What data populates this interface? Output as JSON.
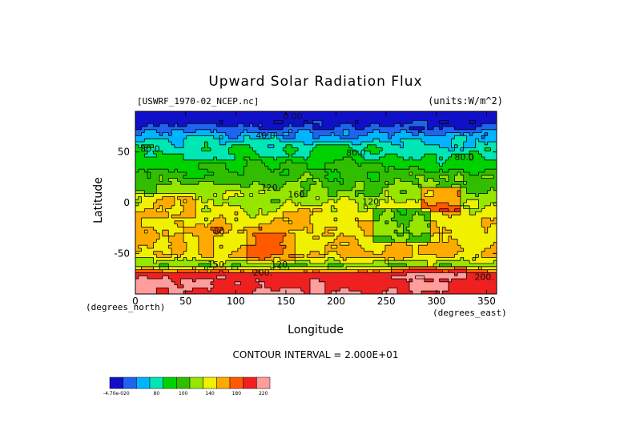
{
  "chart_data": {
    "type": "heatmap",
    "title": "Upward Solar Radiation Flux",
    "subtitle_left": "[USWRF_1970-02_NCEP.nc]",
    "units_label": "(units:W/m^2)",
    "xlabel": "Longitude",
    "ylabel": "Latitude",
    "x_unit_note": "(degrees_east)",
    "y_unit_note": "(degrees_north)",
    "xlim": [
      0,
      360
    ],
    "ylim": [
      -90,
      90
    ],
    "x_ticks": [
      0,
      50,
      100,
      150,
      200,
      250,
      300,
      350
    ],
    "y_ticks": [
      50,
      0,
      -50
    ],
    "contour_interval_text": "CONTOUR INTERVAL = 2.000E+01",
    "contour_labels": [
      {
        "text": "0.00",
        "lon": 147,
        "lat": 82
      },
      {
        "text": "40.0",
        "lon": 120,
        "lat": 63
      },
      {
        "text": "80.0",
        "lon": 5,
        "lat": 50
      },
      {
        "text": "80.0",
        "lon": 210,
        "lat": 46
      },
      {
        "text": "80.0",
        "lon": 318,
        "lat": 42
      },
      {
        "text": "120",
        "lon": 125,
        "lat": 12
      },
      {
        "text": "160",
        "lon": 152,
        "lat": 5
      },
      {
        "text": "120",
        "lon": 226,
        "lat": -2
      },
      {
        "text": "80",
        "lon": 78,
        "lat": -31
      },
      {
        "text": "150",
        "lon": 72,
        "lat": -64
      },
      {
        "text": "120",
        "lon": 135,
        "lat": -64
      },
      {
        "text": "200.",
        "lon": 117,
        "lat": -72
      },
      {
        "text": "200.",
        "lon": 338,
        "lat": -76
      }
    ],
    "colorbar": {
      "levels": [
        "-4.70e-020",
        "",
        "",
        "80",
        "",
        "100",
        "",
        "140",
        "",
        "180",
        "",
        "220"
      ],
      "colors": [
        "#1010c8",
        "#1e64f0",
        "#00b4ff",
        "#00e6b4",
        "#00d200",
        "#32be00",
        "#96e600",
        "#f0f000",
        "#ffaa00",
        "#ff5a00",
        "#ee2020",
        "#ff9c9c"
      ]
    },
    "zonal_profile": {
      "description_values_by_lat": [
        {
          "lat": 90,
          "value": 0
        },
        {
          "lat": 80,
          "value": 10
        },
        {
          "lat": 72,
          "value": 30
        },
        {
          "lat": 62,
          "value": 55
        },
        {
          "lat": 52,
          "value": 75
        },
        {
          "lat": 40,
          "value": 95
        },
        {
          "lat": 28,
          "value": 105
        },
        {
          "lat": 15,
          "value": 120
        },
        {
          "lat": 5,
          "value": 130
        },
        {
          "lat": -10,
          "value": 150
        },
        {
          "lat": -25,
          "value": 165
        },
        {
          "lat": -40,
          "value": 160
        },
        {
          "lat": -52,
          "value": 165
        },
        {
          "lat": -62,
          "value": 125
        },
        {
          "lat": -68,
          "value": 185
        },
        {
          "lat": -75,
          "value": 215
        },
        {
          "lat": -90,
          "value": 220
        }
      ]
    }
  }
}
